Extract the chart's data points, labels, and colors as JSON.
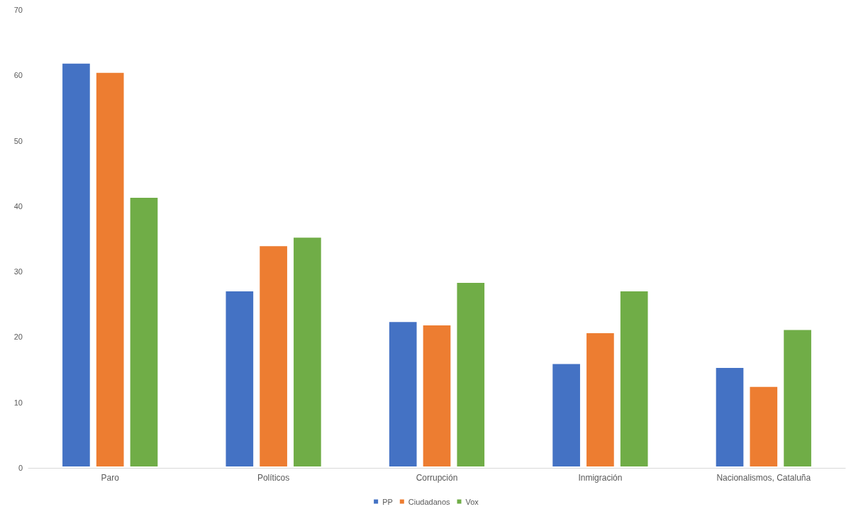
{
  "chart_data": {
    "type": "bar",
    "categories": [
      "Paro",
      "Políticos",
      "Corrupción",
      "Inmigración",
      "Nacionalismos, Cataluña"
    ],
    "series": [
      {
        "name": "PP",
        "color": "#4472c4",
        "values": [
          62.0,
          27.2,
          22.5,
          16.1,
          15.5
        ]
      },
      {
        "name": "Ciudadanos",
        "color": "#ed7d31",
        "values": [
          60.6,
          34.1,
          22.0,
          20.8,
          12.6
        ]
      },
      {
        "name": "Vox",
        "color": "#70ad47",
        "values": [
          41.5,
          35.4,
          28.5,
          27.2,
          21.3
        ]
      }
    ],
    "ylim": [
      0,
      70
    ],
    "yticks": [
      0,
      10,
      20,
      30,
      40,
      50,
      60,
      70
    ],
    "grid": false,
    "legend": "bottom"
  }
}
